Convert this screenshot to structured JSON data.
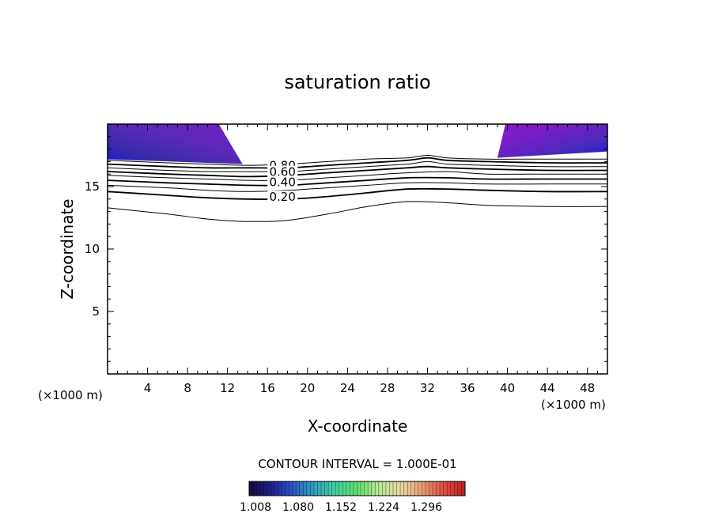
{
  "chart_data": {
    "type": "contour",
    "title": "saturation ratio",
    "xlabel": "X-coordinate",
    "ylabel": "Z-coordinate",
    "x_unit_left": "(×1000 m)",
    "x_unit_right": "(×1000 m)",
    "xlim": [
      0,
      50
    ],
    "ylim": [
      0,
      20
    ],
    "xticks": [
      4,
      8,
      12,
      16,
      20,
      24,
      28,
      32,
      36,
      40,
      44,
      48
    ],
    "yticks": [
      5,
      10,
      15
    ],
    "contour_interval_label": "CONTOUR INTERVAL = 1.000E-01",
    "contour_labels": [
      {
        "text": "0.80",
        "x": 17.5,
        "z": 16.6
      },
      {
        "text": "0.60",
        "x": 17.5,
        "z": 16.1
      },
      {
        "text": "0.40",
        "x": 17.5,
        "z": 15.3
      },
      {
        "text": "0.20",
        "x": 17.5,
        "z": 14.1
      }
    ],
    "contour_lines": [
      {
        "level": 0.1,
        "points": [
          [
            0,
            13.3
          ],
          [
            6,
            12.8
          ],
          [
            10,
            12.4
          ],
          [
            14,
            12.2
          ],
          [
            18,
            12.3
          ],
          [
            22,
            12.8
          ],
          [
            26,
            13.4
          ],
          [
            30,
            13.8
          ],
          [
            34,
            13.7
          ],
          [
            38,
            13.5
          ],
          [
            44,
            13.4
          ],
          [
            50,
            13.4
          ]
        ]
      },
      {
        "level": 0.2,
        "points": [
          [
            0,
            14.6
          ],
          [
            6,
            14.3
          ],
          [
            10,
            14.1
          ],
          [
            14,
            14.0
          ],
          [
            18,
            14.0
          ],
          [
            22,
            14.2
          ],
          [
            26,
            14.5
          ],
          [
            30,
            14.8
          ],
          [
            34,
            14.8
          ],
          [
            38,
            14.7
          ],
          [
            44,
            14.6
          ],
          [
            50,
            14.6
          ]
        ]
      },
      {
        "level": 0.3,
        "points": [
          [
            0,
            15.1
          ],
          [
            6,
            14.9
          ],
          [
            10,
            14.7
          ],
          [
            14,
            14.6
          ],
          [
            18,
            14.7
          ],
          [
            22,
            14.9
          ],
          [
            26,
            15.1
          ],
          [
            30,
            15.3
          ],
          [
            34,
            15.3
          ],
          [
            38,
            15.2
          ],
          [
            44,
            15.2
          ],
          [
            50,
            15.2
          ]
        ]
      },
      {
        "level": 0.4,
        "points": [
          [
            0,
            15.5
          ],
          [
            6,
            15.3
          ],
          [
            10,
            15.2
          ],
          [
            14,
            15.1
          ],
          [
            18,
            15.1
          ],
          [
            22,
            15.3
          ],
          [
            26,
            15.5
          ],
          [
            30,
            15.7
          ],
          [
            34,
            15.7
          ],
          [
            38,
            15.6
          ],
          [
            44,
            15.6
          ],
          [
            50,
            15.6
          ]
        ]
      },
      {
        "level": 0.5,
        "points": [
          [
            0,
            15.9
          ],
          [
            6,
            15.7
          ],
          [
            10,
            15.6
          ],
          [
            14,
            15.5
          ],
          [
            18,
            15.5
          ],
          [
            22,
            15.7
          ],
          [
            26,
            15.9
          ],
          [
            30,
            16.1
          ],
          [
            34,
            16.2
          ],
          [
            38,
            16.0
          ],
          [
            44,
            16.0
          ],
          [
            50,
            16.0
          ]
        ]
      },
      {
        "level": 0.6,
        "points": [
          [
            0,
            16.2
          ],
          [
            6,
            16.0
          ],
          [
            10,
            15.9
          ],
          [
            14,
            15.8
          ],
          [
            18,
            15.9
          ],
          [
            22,
            16.1
          ],
          [
            26,
            16.3
          ],
          [
            30,
            16.5
          ],
          [
            32,
            16.6
          ],
          [
            34,
            16.5
          ],
          [
            38,
            16.4
          ],
          [
            44,
            16.3
          ],
          [
            50,
            16.3
          ]
        ]
      },
      {
        "level": 0.7,
        "points": [
          [
            0,
            16.5
          ],
          [
            6,
            16.3
          ],
          [
            10,
            16.2
          ],
          [
            14,
            16.2
          ],
          [
            18,
            16.2
          ],
          [
            22,
            16.4
          ],
          [
            26,
            16.6
          ],
          [
            30,
            16.8
          ],
          [
            32,
            17.0
          ],
          [
            34,
            16.8
          ],
          [
            38,
            16.7
          ],
          [
            44,
            16.6
          ],
          [
            50,
            16.6
          ]
        ]
      },
      {
        "level": 0.8,
        "points": [
          [
            0,
            16.8
          ],
          [
            6,
            16.6
          ],
          [
            10,
            16.5
          ],
          [
            14,
            16.5
          ],
          [
            18,
            16.5
          ],
          [
            22,
            16.7
          ],
          [
            26,
            16.9
          ],
          [
            30,
            17.1
          ],
          [
            32,
            17.3
          ],
          [
            34,
            17.1
          ],
          [
            38,
            17.0
          ],
          [
            44,
            16.9
          ],
          [
            50,
            16.9
          ]
        ]
      },
      {
        "level": 0.9,
        "points": [
          [
            0,
            17.1
          ],
          [
            6,
            16.9
          ],
          [
            10,
            16.8
          ],
          [
            14,
            16.7
          ],
          [
            18,
            16.8
          ],
          [
            22,
            17.0
          ],
          [
            26,
            17.2
          ],
          [
            30,
            17.3
          ],
          [
            32,
            17.5
          ],
          [
            34,
            17.3
          ],
          [
            38,
            17.2
          ],
          [
            44,
            17.2
          ],
          [
            50,
            17.2
          ]
        ]
      }
    ],
    "shaded_regions": [
      {
        "region": "left",
        "x_range": [
          0,
          13.5
        ],
        "z_range": [
          16.8,
          20
        ]
      },
      {
        "region": "right",
        "x_range": [
          39,
          50
        ],
        "z_range": [
          17.3,
          20
        ]
      }
    ],
    "colorbar": {
      "tick_labels": [
        "1.008",
        "1.080",
        "1.152",
        "1.224",
        "1.296"
      ],
      "colors": [
        "#1a0a3a",
        "#1f1f8a",
        "#2a55c8",
        "#33a0c0",
        "#44d0a0",
        "#60e070",
        "#b8e890",
        "#e8d8a0",
        "#e8a070",
        "#e05040",
        "#c02020"
      ]
    },
    "grid": false,
    "legend": "bottom"
  }
}
